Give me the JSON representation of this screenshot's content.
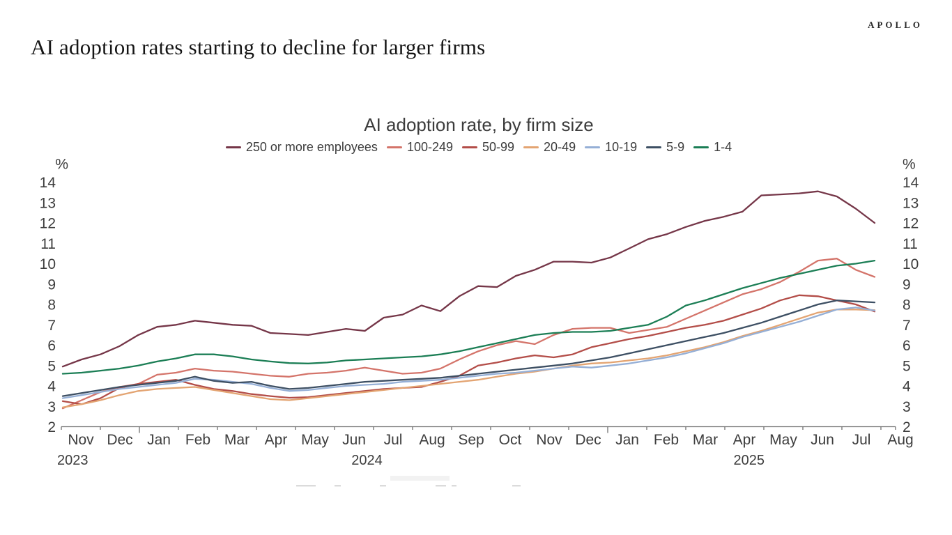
{
  "header": {
    "title": "AI adoption rates starting to decline for larger firms",
    "logo": "APOLLO"
  },
  "chart": {
    "title": "AI adoption rate, by firm size",
    "y_axis": {
      "unit_label": "%",
      "min": 2,
      "max": 14,
      "tick_step": 1,
      "shown_on": "both sides"
    },
    "x_axis": {
      "month_labels": [
        "Nov",
        "Dec",
        "Jan",
        "Feb",
        "Mar",
        "Apr",
        "May",
        "Jun",
        "Jul",
        "Aug",
        "Sep",
        "Oct",
        "Nov",
        "Dec",
        "Jan",
        "Feb",
        "Mar",
        "Apr",
        "May",
        "Jun",
        "Jul",
        "Aug"
      ],
      "year_labels": [
        {
          "text": "2023",
          "month_pos": -0.21
        },
        {
          "text": "2024",
          "month_pos": 7.33
        },
        {
          "text": "2025",
          "month_pos": 17.12
        }
      ]
    }
  },
  "chart_data": {
    "type": "line",
    "title": "AI adoption rate, by firm size",
    "xlabel": "",
    "ylabel": "%",
    "ylim": [
      2,
      14
    ],
    "grid": false,
    "legend_position": "top-center",
    "x_description": "Biweekly samples, Nov 2023 through late Jul 2025; month ticks Nov 2023 - Aug 2025",
    "series": [
      {
        "key": "250-or-more",
        "name": "250 or more employees",
        "color": "#753648",
        "values": [
          4.95,
          5.3,
          5.55,
          5.95,
          6.5,
          6.9,
          7.0,
          7.2,
          7.1,
          7.0,
          6.95,
          6.6,
          6.55,
          6.5,
          6.65,
          6.8,
          6.7,
          7.35,
          7.5,
          7.95,
          7.67,
          8.4,
          8.9,
          8.85,
          9.4,
          9.7,
          10.1,
          10.1,
          10.05,
          10.3,
          10.75,
          11.2,
          11.45,
          11.8,
          12.1,
          12.3,
          12.55,
          13.35,
          13.4,
          13.45,
          13.55,
          13.3,
          12.7,
          12.0
        ]
      },
      {
        "key": "100-249",
        "name": "100-249",
        "color": "#d4746a",
        "values": [
          2.9,
          3.3,
          3.7,
          3.95,
          4.1,
          4.55,
          4.65,
          4.85,
          4.75,
          4.7,
          4.6,
          4.5,
          4.45,
          4.6,
          4.65,
          4.75,
          4.9,
          4.75,
          4.6,
          4.65,
          4.85,
          5.3,
          5.7,
          6.0,
          6.2,
          6.05,
          6.5,
          6.8,
          6.85,
          6.85,
          6.6,
          6.75,
          6.9,
          7.3,
          7.7,
          8.1,
          8.5,
          8.75,
          9.1,
          9.6,
          10.15,
          10.25,
          9.7,
          9.35
        ]
      },
      {
        "key": "50-99",
        "name": "50-99",
        "color": "#b34d48",
        "values": [
          3.25,
          3.1,
          3.4,
          3.9,
          4.1,
          4.2,
          4.3,
          4.05,
          3.85,
          3.75,
          3.6,
          3.5,
          3.42,
          3.45,
          3.55,
          3.65,
          3.75,
          3.85,
          3.9,
          3.95,
          4.2,
          4.5,
          5.0,
          5.15,
          5.35,
          5.5,
          5.4,
          5.55,
          5.9,
          6.1,
          6.3,
          6.45,
          6.65,
          6.85,
          7.0,
          7.2,
          7.5,
          7.8,
          8.2,
          8.45,
          8.4,
          8.2,
          8.0,
          7.65
        ]
      },
      {
        "key": "20-49",
        "name": "20-49",
        "color": "#e3a472",
        "values": [
          2.95,
          3.1,
          3.3,
          3.55,
          3.75,
          3.85,
          3.9,
          3.95,
          3.8,
          3.65,
          3.5,
          3.35,
          3.3,
          3.4,
          3.5,
          3.6,
          3.7,
          3.8,
          3.9,
          4.0,
          4.1,
          4.2,
          4.3,
          4.45,
          4.6,
          4.7,
          4.85,
          5.0,
          5.1,
          5.15,
          5.25,
          5.35,
          5.5,
          5.7,
          5.9,
          6.15,
          6.45,
          6.7,
          7.0,
          7.3,
          7.6,
          7.75,
          7.75,
          7.72
        ]
      },
      {
        "key": "10-19",
        "name": "10-19",
        "color": "#95afd6",
        "values": [
          3.4,
          3.55,
          3.7,
          3.85,
          3.95,
          4.05,
          4.15,
          4.35,
          4.3,
          4.2,
          4.1,
          3.9,
          3.75,
          3.8,
          3.9,
          4.0,
          4.05,
          4.1,
          4.2,
          4.25,
          4.3,
          4.4,
          4.5,
          4.6,
          4.65,
          4.75,
          4.85,
          4.95,
          4.9,
          5.0,
          5.1,
          5.25,
          5.4,
          5.6,
          5.85,
          6.1,
          6.4,
          6.65,
          6.9,
          7.15,
          7.45,
          7.75,
          7.85,
          7.7
        ]
      },
      {
        "key": "5-9",
        "name": "5-9",
        "color": "#3d4f63",
        "values": [
          3.5,
          3.65,
          3.8,
          3.95,
          4.05,
          4.15,
          4.25,
          4.45,
          4.25,
          4.15,
          4.2,
          4.0,
          3.85,
          3.9,
          4.0,
          4.1,
          4.2,
          4.25,
          4.3,
          4.35,
          4.4,
          4.5,
          4.6,
          4.7,
          4.8,
          4.9,
          5.0,
          5.1,
          5.25,
          5.4,
          5.6,
          5.8,
          6.0,
          6.2,
          6.4,
          6.6,
          6.85,
          7.1,
          7.4,
          7.7,
          8.0,
          8.2,
          8.15,
          8.1
        ]
      },
      {
        "key": "1-4",
        "name": "1-4",
        "color": "#1b7e55",
        "values": [
          4.6,
          4.65,
          4.75,
          4.85,
          5.0,
          5.2,
          5.35,
          5.55,
          5.55,
          5.45,
          5.3,
          5.2,
          5.12,
          5.1,
          5.15,
          5.25,
          5.3,
          5.35,
          5.4,
          5.45,
          5.55,
          5.7,
          5.9,
          6.1,
          6.3,
          6.5,
          6.6,
          6.65,
          6.65,
          6.7,
          6.85,
          7.0,
          7.4,
          7.95,
          8.2,
          8.5,
          8.8,
          9.05,
          9.3,
          9.5,
          9.7,
          9.9,
          10.0,
          10.15
        ]
      }
    ]
  }
}
